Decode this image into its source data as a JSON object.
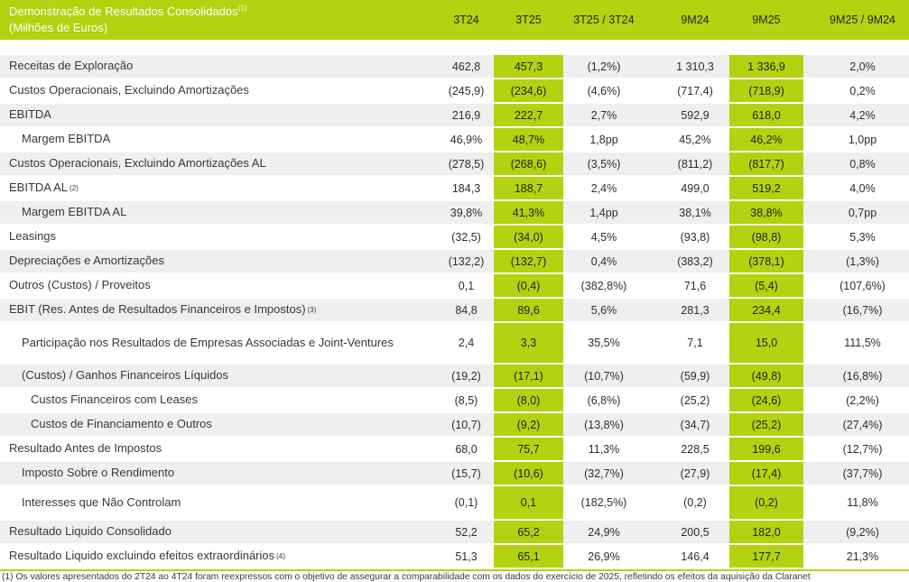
{
  "page": {
    "title": "Demonstração de Resultados Consolidados",
    "title_superscript": "(1)",
    "subtitle": "(Milhões de Euros)"
  },
  "colors": {
    "accent_green": "#B4D20F",
    "stripe_gray": "#EFEFEF",
    "header_title_text": "#FFFFFF",
    "body_text": "#333333"
  },
  "columns": [
    {
      "label": "3T24",
      "highlight": false
    },
    {
      "label": "3T25",
      "highlight": true
    },
    {
      "label": "3T25 / 3T24",
      "highlight": false
    },
    {
      "label": "9M24",
      "highlight": false
    },
    {
      "label": "9M25",
      "highlight": true
    },
    {
      "label": "9M25 / 9M24",
      "highlight": false
    }
  ],
  "rows": [
    {
      "label": "Receitas de Exploração",
      "indent": 0,
      "values": [
        "462,8",
        "457,3",
        "(1,2%)",
        "1 310,3",
        "1 336,9",
        "2,0%"
      ]
    },
    {
      "label": "Custos Operacionais, Excluindo Amortizações",
      "indent": 0,
      "values": [
        "(245,9)",
        "(234,6)",
        "(4,6%)",
        "(717,4)",
        "(718,9)",
        "0,2%"
      ]
    },
    {
      "label": "EBITDA",
      "indent": 0,
      "values": [
        "216,9",
        "222,7",
        "2,7%",
        "592,9",
        "618,0",
        "4,2%"
      ]
    },
    {
      "label": "Margem EBITDA",
      "indent": 1,
      "values": [
        "46,9%",
        "48,7%",
        "1,8pp",
        "45,2%",
        "46,2%",
        "1,0pp"
      ]
    },
    {
      "label": "Custos Operacionais, Excluindo Amortizações AL",
      "indent": 0,
      "values": [
        "(278,5)",
        "(268,6)",
        "(3,5%)",
        "(811,2)",
        "(817,7)",
        "0,8%"
      ]
    },
    {
      "label": "EBITDA AL",
      "sup": "(2)",
      "indent": 0,
      "values": [
        "184,3",
        "188,7",
        "2,4%",
        "499,0",
        "519,2",
        "4,0%"
      ]
    },
    {
      "label": "Margem EBITDA AL",
      "indent": 1,
      "values": [
        "39,8%",
        "41,3%",
        "1,4pp",
        "38,1%",
        "38,8%",
        "0,7pp"
      ]
    },
    {
      "label": "Leasings",
      "indent": 0,
      "values": [
        "(32,5)",
        "(34,0)",
        "4,5%",
        "(93,8)",
        "(98,8)",
        "5,3%"
      ]
    },
    {
      "label": "Depreciações e Amortizações",
      "indent": 0,
      "values": [
        "(132,2)",
        "(132,7)",
        "0,4%",
        "(383,2)",
        "(378,1)",
        "(1,3%)"
      ]
    },
    {
      "label": "Outros (Custos) / Proveitos",
      "indent": 0,
      "values": [
        "0,1",
        "(0,4)",
        "(382,8%)",
        "71,6",
        "(5,4)",
        "(107,6%)"
      ]
    },
    {
      "label": "EBIT (Res. Antes de Resultados Financeiros e Impostos)",
      "sup": "(3)",
      "indent": 0,
      "values": [
        "84,8",
        "89,6",
        "5,6%",
        "281,3",
        "234,4",
        "(16,7%)"
      ]
    },
    {
      "label": "Participação nos Resultados de Empresas Associadas e Joint-Ventures",
      "indent": 1,
      "size": "tall",
      "values": [
        "2,4",
        "3,3",
        "35,5%",
        "7,1",
        "15,0",
        "111,5%"
      ]
    },
    {
      "label": "(Custos) / Ganhos Financeiros Líquidos",
      "indent": 1,
      "values": [
        "(19,2)",
        "(17,1)",
        "(10,7%)",
        "(59,9)",
        "(49,8)",
        "(16,8%)"
      ]
    },
    {
      "label": "Custos Financeiros com Leases",
      "indent": 2,
      "values": [
        "(8,5)",
        "(8,0)",
        "(6,8%)",
        "(25,2)",
        "(24,6)",
        "(2,2%)"
      ]
    },
    {
      "label": "Custos de Financiamento e Outros",
      "indent": 2,
      "values": [
        "(10,7)",
        "(9,2)",
        "(13,8%)",
        "(34,7)",
        "(25,2)",
        "(27,4%)"
      ]
    },
    {
      "label": "Resultado Antes de Impostos",
      "indent": 0,
      "values": [
        "68,0",
        "75,7",
        "11,3%",
        "228,5",
        "199,6",
        "(12,7%)"
      ]
    },
    {
      "label": "Imposto Sobre o Rendimento",
      "indent": 1,
      "values": [
        "(15,7)",
        "(10,6)",
        "(32,7%)",
        "(27,9)",
        "(17,4)",
        "(37,7%)"
      ]
    },
    {
      "label": "Interesses que Não Controlam",
      "indent": 1,
      "size": "roomy",
      "values": [
        "(0,1)",
        "0,1",
        "(182,5%)",
        "(0,2)",
        "(0,2)",
        "11,8%"
      ]
    },
    {
      "label": "Resultado Liquido Consolidado",
      "indent": 0,
      "values": [
        "52,2",
        "65,2",
        "24,9%",
        "200,5",
        "182,0",
        "(9,2%)"
      ]
    },
    {
      "label": "Resultado Liquido excluindo efeitos extraordinários",
      "sup": "(4)",
      "indent": 0,
      "values": [
        "51,3",
        "65,1",
        "26,9%",
        "146,4",
        "177,7",
        "21,3%"
      ]
    }
  ],
  "footnote": "(1) Os valores apresentados do 2T24 ao 4T24 foram reexpressos com o objetivo de assegurar a comparabilidade com os dados do exercício de 2025, refletindo os efeitos da aquisição da Claranet"
}
